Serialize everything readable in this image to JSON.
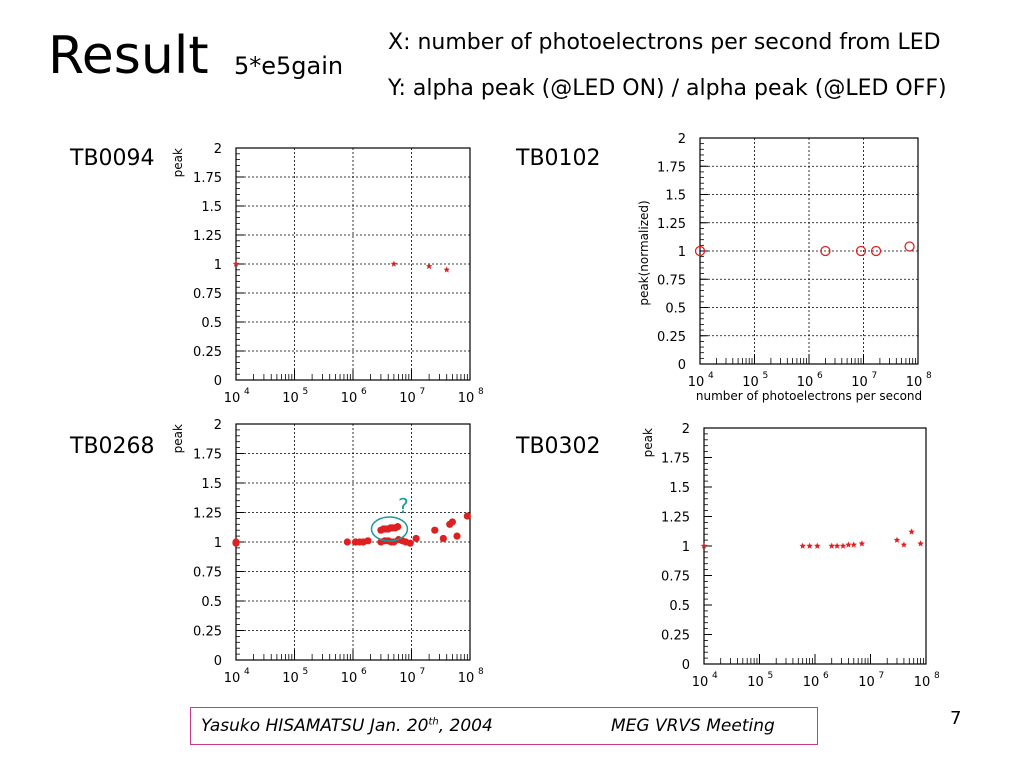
{
  "slide": {
    "title": "Result",
    "subtitle": "5*e5gain",
    "x_desc": "X: number of photoelectrons per second from LED",
    "y_desc": "Y: alpha peak (@LED ON) / alpha peak (@LED OFF)",
    "footer_author": "Yasuko HISAMATSU Jan. 20",
    "footer_author_sup": "th",
    "footer_author_year": ", 2004",
    "footer_meeting": "MEG VRVS Meeting",
    "page_number": "7",
    "accent_color": "#e02020",
    "annotation_color": "#1a9a9a",
    "footer_border_color": "#c83a8c"
  },
  "chart_data": [
    {
      "id": "TB0094",
      "type": "scatter",
      "title": "TB0094",
      "ylabel": "peak",
      "xlabel": "",
      "xscale": "log",
      "xlim": [
        10000,
        100000000
      ],
      "ylim": [
        0,
        2
      ],
      "yticks": [
        "0",
        "0.25",
        "0.5",
        "0.75",
        "1",
        "1.25",
        "1.5",
        "1.75",
        "2"
      ],
      "xticks": [
        {
          "base": "10",
          "exp": "4"
        },
        {
          "base": "10",
          "exp": "5"
        },
        {
          "base": "10",
          "exp": "6"
        },
        {
          "base": "10",
          "exp": "7"
        },
        {
          "base": "10",
          "exp": "8"
        }
      ],
      "grid": true,
      "marker": "star",
      "series": [
        {
          "x": [
            10000,
            5000000,
            20000000,
            40000000
          ],
          "y": [
            1.0,
            1.0,
            0.98,
            0.95
          ]
        }
      ]
    },
    {
      "id": "TB0102",
      "type": "scatter",
      "title": "TB0102",
      "ylabel": "peak(normalized)",
      "xlabel": "number of photoelectrons per second",
      "xscale": "log",
      "xlim": [
        10000,
        100000000
      ],
      "ylim": [
        0,
        2
      ],
      "yticks": [
        "0",
        "0.25",
        "0.5",
        "0.75",
        "1",
        "1.25",
        "1.5",
        "1.75",
        "2"
      ],
      "xticks": [
        {
          "base": "10",
          "exp": "4"
        },
        {
          "base": "10",
          "exp": "5"
        },
        {
          "base": "10",
          "exp": "6"
        },
        {
          "base": "10",
          "exp": "7"
        },
        {
          "base": "10",
          "exp": "8"
        }
      ],
      "grid": true,
      "marker": "open-circle",
      "series": [
        {
          "x": [
            10000,
            2000000,
            9000000,
            17000000,
            70000000
          ],
          "y": [
            1.0,
            1.0,
            1.0,
            1.0,
            1.04
          ]
        }
      ]
    },
    {
      "id": "TB0268",
      "type": "scatter",
      "title": "TB0268",
      "ylabel": "peak",
      "xlabel": "",
      "xscale": "log",
      "xlim": [
        10000,
        100000000
      ],
      "ylim": [
        0,
        2
      ],
      "yticks": [
        "0",
        "0.25",
        "0.5",
        "0.75",
        "1",
        "1.25",
        "1.5",
        "1.75",
        "2"
      ],
      "xticks": [
        {
          "base": "10",
          "exp": "4"
        },
        {
          "base": "10",
          "exp": "5"
        },
        {
          "base": "10",
          "exp": "6"
        },
        {
          "base": "10",
          "exp": "7"
        },
        {
          "base": "10",
          "exp": "8"
        }
      ],
      "grid": true,
      "marker": "filled-circle",
      "series": [
        {
          "x": [
            10000,
            10000,
            800000,
            1100000,
            1300000,
            1500000,
            1800000,
            3000000,
            3300000,
            3600000,
            4000000,
            4400000,
            4800000,
            5300000,
            5800000,
            3000000,
            3500000,
            4000000,
            4500000,
            5000000,
            6000000,
            7000000,
            8000000,
            9500000,
            12000000,
            25000000,
            35000000,
            45000000,
            50000000,
            60000000,
            90000000
          ],
          "y": [
            1.0,
            0.99,
            1.0,
            1.0,
            1.0,
            1.0,
            1.01,
            1.1,
            1.11,
            1.11,
            1.11,
            1.12,
            1.12,
            1.12,
            1.13,
            1.0,
            1.01,
            1.01,
            1.0,
            1.0,
            1.02,
            1.01,
            1.0,
            0.99,
            1.03,
            1.1,
            1.03,
            1.15,
            1.17,
            1.05,
            1.22
          ]
        }
      ],
      "annotation": "?"
    },
    {
      "id": "TB0302",
      "type": "scatter",
      "title": "TB0302",
      "ylabel": "peak",
      "xlabel": "",
      "xscale": "log",
      "xlim": [
        10000,
        100000000
      ],
      "ylim": [
        0,
        2
      ],
      "yticks": [
        "0",
        "0.25",
        "0.5",
        "0.75",
        "1",
        "1.25",
        "1.5",
        "1.75",
        "2"
      ],
      "xticks": [
        {
          "base": "10",
          "exp": "4"
        },
        {
          "base": "10",
          "exp": "5"
        },
        {
          "base": "10",
          "exp": "6"
        },
        {
          "base": "10",
          "exp": "7"
        },
        {
          "base": "10",
          "exp": "8"
        }
      ],
      "grid": false,
      "marker": "star",
      "series": [
        {
          "x": [
            10000,
            600000,
            800000,
            1100000,
            2000000,
            2500000,
            3200000,
            4000000,
            5000000,
            7000000,
            30000000,
            40000000,
            55000000,
            80000000
          ],
          "y": [
            1.0,
            1.0,
            1.0,
            1.0,
            1.0,
            1.0,
            1.0,
            1.01,
            1.01,
            1.02,
            1.05,
            1.01,
            1.12,
            1.02
          ]
        }
      ]
    }
  ]
}
